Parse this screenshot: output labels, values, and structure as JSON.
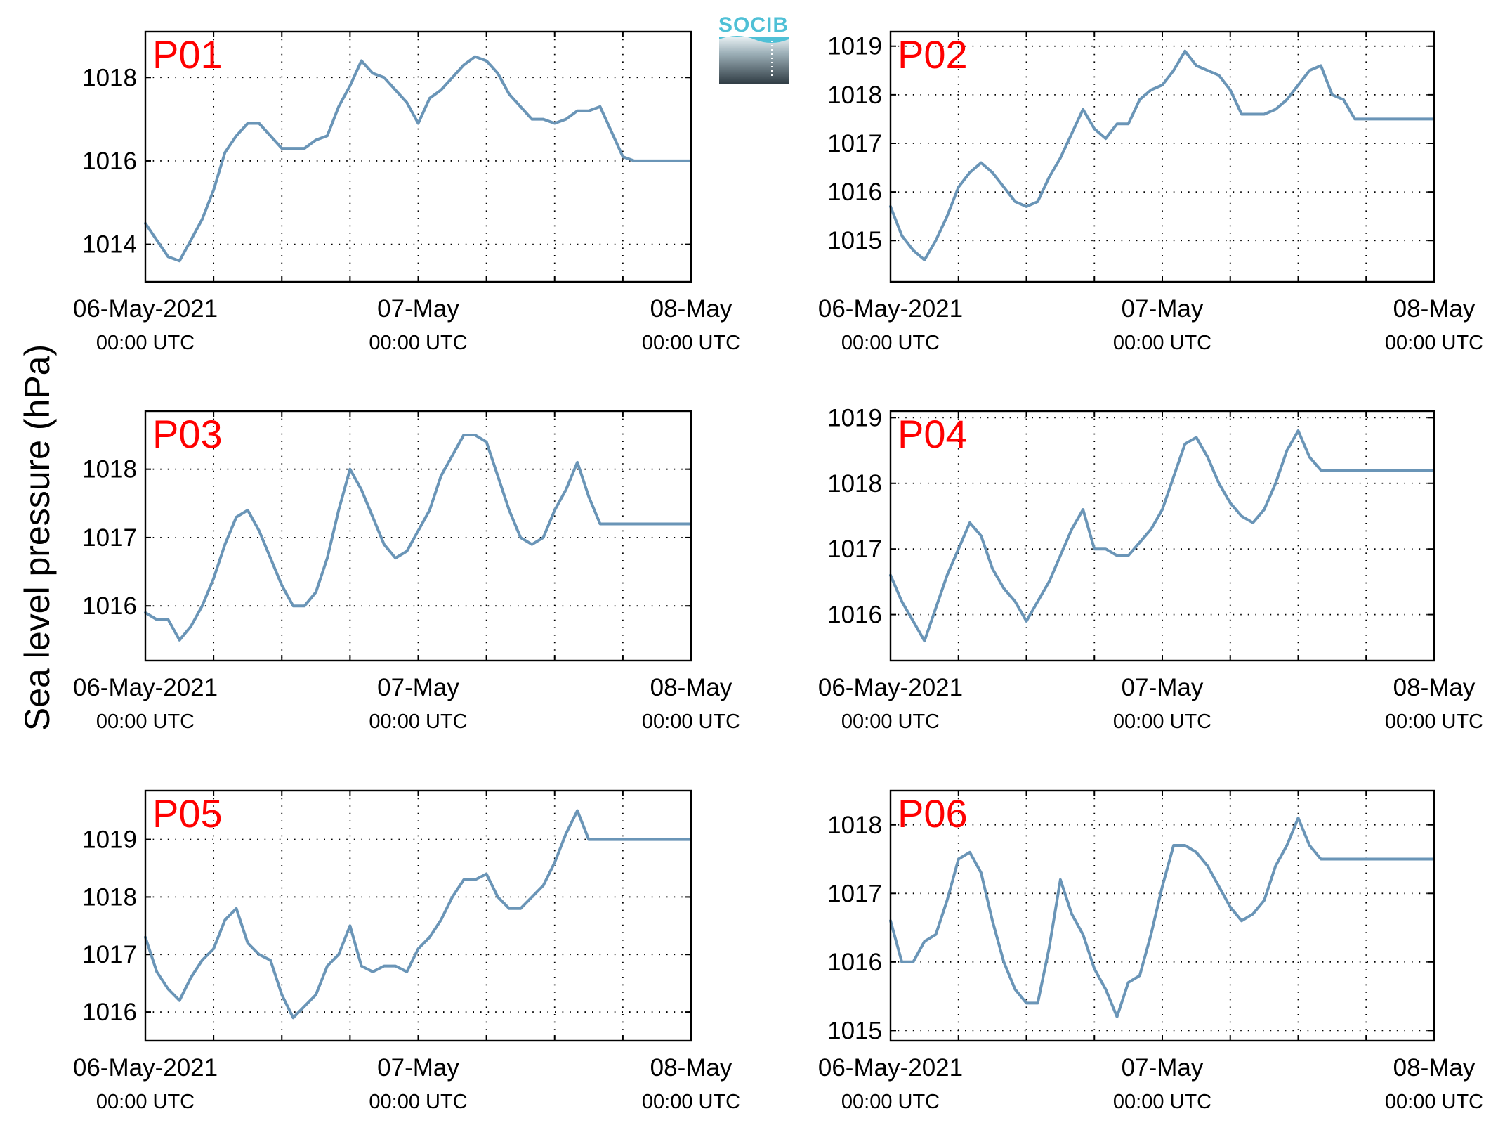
{
  "figure": {
    "ylabel": "Sea level pressure (hPa)",
    "logo_text": "SOCIB",
    "colors": {
      "series": "#6a95b7",
      "panel_label": "#ff0000"
    }
  },
  "chart_data": [
    {
      "type": "line",
      "panel_label": "P01",
      "xlim": [
        "06-May-2021 00:00 UTC",
        "08-May-2021 00:00 UTC"
      ],
      "ylim": [
        1013.1,
        1019.1
      ],
      "yticks": [
        1014,
        1016,
        1018
      ],
      "xtick_labels": [
        [
          "06-May-2021",
          "00:00 UTC"
        ],
        [
          "07-May",
          "00:00 UTC"
        ],
        [
          "08-May",
          "00:00 UTC"
        ]
      ],
      "grid": true,
      "x_hours": [
        0,
        1,
        2,
        3,
        4,
        5,
        6,
        7,
        8,
        9,
        10,
        11,
        12,
        13,
        14,
        15,
        16,
        17,
        18,
        19,
        20,
        21,
        22,
        23,
        24,
        25,
        26,
        27,
        28,
        29,
        30,
        31,
        32,
        33,
        34,
        35,
        36,
        37,
        38,
        39,
        40,
        41,
        42,
        43,
        44,
        45,
        46,
        47,
        48
      ],
      "y": [
        1014.5,
        1014.1,
        1013.7,
        1013.6,
        1014.1,
        1014.6,
        1015.3,
        1016.2,
        1016.6,
        1016.9,
        1016.9,
        1016.6,
        1016.3,
        1016.3,
        1016.3,
        1016.5,
        1016.6,
        1017.3,
        1017.8,
        1018.4,
        1018.1,
        1018.0,
        1017.7,
        1017.4,
        1016.9,
        1017.5,
        1017.7,
        1018.0,
        1018.3,
        1018.5,
        1018.4,
        1018.1,
        1017.6,
        1017.3,
        1017.0,
        1017.0,
        1016.9,
        1017.0,
        1017.2,
        1017.2,
        1017.3,
        1016.7,
        1016.1,
        1016.0,
        1016.0,
        1016.0,
        1016.0,
        1016.0,
        1016.0
      ]
    },
    {
      "type": "line",
      "panel_label": "P02",
      "xlim": [
        "06-May-2021 00:00 UTC",
        "08-May-2021 00:00 UTC"
      ],
      "ylim": [
        1014.15,
        1019.3
      ],
      "yticks": [
        1015,
        1016,
        1017,
        1018,
        1019
      ],
      "xtick_labels": [
        [
          "06-May-2021",
          "00:00 UTC"
        ],
        [
          "07-May",
          "00:00 UTC"
        ],
        [
          "08-May",
          "00:00 UTC"
        ]
      ],
      "grid": true,
      "x_hours": [
        0,
        1,
        2,
        3,
        4,
        5,
        6,
        7,
        8,
        9,
        10,
        11,
        12,
        13,
        14,
        15,
        16,
        17,
        18,
        19,
        20,
        21,
        22,
        23,
        24,
        25,
        26,
        27,
        28,
        29,
        30,
        31,
        32,
        33,
        34,
        35,
        36,
        37,
        38,
        39,
        40,
        41,
        42,
        43,
        44,
        45,
        46,
        47,
        48
      ],
      "y": [
        1015.7,
        1015.1,
        1014.8,
        1014.6,
        1015.0,
        1015.5,
        1016.1,
        1016.4,
        1016.6,
        1016.4,
        1016.1,
        1015.8,
        1015.7,
        1015.8,
        1016.3,
        1016.7,
        1017.2,
        1017.7,
        1017.3,
        1017.1,
        1017.4,
        1017.4,
        1017.9,
        1018.1,
        1018.2,
        1018.5,
        1018.9,
        1018.6,
        1018.5,
        1018.4,
        1018.1,
        1017.6,
        1017.6,
        1017.6,
        1017.7,
        1017.9,
        1018.2,
        1018.5,
        1018.6,
        1018.0,
        1017.9,
        1017.5,
        1017.5,
        1017.5,
        1017.5,
        1017.5,
        1017.5,
        1017.5,
        1017.5
      ]
    },
    {
      "type": "line",
      "panel_label": "P03",
      "xlim": [
        "06-May-2021 00:00 UTC",
        "08-May-2021 00:00 UTC"
      ],
      "ylim": [
        1015.2,
        1018.85
      ],
      "yticks": [
        1016,
        1017,
        1018
      ],
      "xtick_labels": [
        [
          "06-May-2021",
          "00:00 UTC"
        ],
        [
          "07-May",
          "00:00 UTC"
        ],
        [
          "08-May",
          "00:00 UTC"
        ]
      ],
      "grid": true,
      "x_hours": [
        0,
        1,
        2,
        3,
        4,
        5,
        6,
        7,
        8,
        9,
        10,
        11,
        12,
        13,
        14,
        15,
        16,
        17,
        18,
        19,
        20,
        21,
        22,
        23,
        24,
        25,
        26,
        27,
        28,
        29,
        30,
        31,
        32,
        33,
        34,
        35,
        36,
        37,
        38,
        39,
        40,
        41,
        42,
        43,
        44,
        45,
        46,
        47,
        48
      ],
      "y": [
        1015.9,
        1015.8,
        1015.8,
        1015.5,
        1015.7,
        1016.0,
        1016.4,
        1016.9,
        1017.3,
        1017.4,
        1017.1,
        1016.7,
        1016.3,
        1016.0,
        1016.0,
        1016.2,
        1016.7,
        1017.4,
        1018.0,
        1017.7,
        1017.3,
        1016.9,
        1016.7,
        1016.8,
        1017.1,
        1017.4,
        1017.9,
        1018.2,
        1018.5,
        1018.5,
        1018.4,
        1017.9,
        1017.4,
        1017.0,
        1016.9,
        1017.0,
        1017.4,
        1017.7,
        1018.1,
        1017.6,
        1017.2,
        1017.2,
        1017.2,
        1017.2,
        1017.2,
        1017.2,
        1017.2,
        1017.2,
        1017.2
      ]
    },
    {
      "type": "line",
      "panel_label": "P04",
      "xlim": [
        "06-May-2021 00:00 UTC",
        "08-May-2021 00:00 UTC"
      ],
      "ylim": [
        1015.3,
        1019.1
      ],
      "yticks": [
        1016,
        1017,
        1018,
        1019
      ],
      "xtick_labels": [
        [
          "06-May-2021",
          "00:00 UTC"
        ],
        [
          "07-May",
          "00:00 UTC"
        ],
        [
          "08-May",
          "00:00 UTC"
        ]
      ],
      "grid": true,
      "x_hours": [
        0,
        1,
        2,
        3,
        4,
        5,
        6,
        7,
        8,
        9,
        10,
        11,
        12,
        13,
        14,
        15,
        16,
        17,
        18,
        19,
        20,
        21,
        22,
        23,
        24,
        25,
        26,
        27,
        28,
        29,
        30,
        31,
        32,
        33,
        34,
        35,
        36,
        37,
        38,
        39,
        40,
        41,
        42,
        43,
        44,
        45,
        46,
        47,
        48
      ],
      "y": [
        1016.6,
        1016.2,
        1015.9,
        1015.6,
        1016.1,
        1016.6,
        1017.0,
        1017.4,
        1017.2,
        1016.7,
        1016.4,
        1016.2,
        1015.9,
        1016.2,
        1016.5,
        1016.9,
        1017.3,
        1017.6,
        1017.0,
        1017.0,
        1016.9,
        1016.9,
        1017.1,
        1017.3,
        1017.6,
        1018.1,
        1018.6,
        1018.7,
        1018.4,
        1018.0,
        1017.7,
        1017.5,
        1017.4,
        1017.6,
        1018.0,
        1018.5,
        1018.8,
        1018.4,
        1018.2,
        1018.2,
        1018.2,
        1018.2,
        1018.2,
        1018.2,
        1018.2,
        1018.2,
        1018.2,
        1018.2,
        1018.2
      ]
    },
    {
      "type": "line",
      "panel_label": "P05",
      "xlim": [
        "06-May-2021 00:00 UTC",
        "08-May-2021 00:00 UTC"
      ],
      "ylim": [
        1015.5,
        1019.85
      ],
      "yticks": [
        1016,
        1017,
        1018,
        1019
      ],
      "xtick_labels": [
        [
          "06-May-2021",
          "00:00 UTC"
        ],
        [
          "07-May",
          "00:00 UTC"
        ],
        [
          "08-May",
          "00:00 UTC"
        ]
      ],
      "grid": true,
      "x_hours": [
        0,
        1,
        2,
        3,
        4,
        5,
        6,
        7,
        8,
        9,
        10,
        11,
        12,
        13,
        14,
        15,
        16,
        17,
        18,
        19,
        20,
        21,
        22,
        23,
        24,
        25,
        26,
        27,
        28,
        29,
        30,
        31,
        32,
        33,
        34,
        35,
        36,
        37,
        38,
        39,
        40,
        41,
        42,
        43,
        44,
        45,
        46,
        47,
        48
      ],
      "y": [
        1017.3,
        1016.7,
        1016.4,
        1016.2,
        1016.6,
        1016.9,
        1017.1,
        1017.6,
        1017.8,
        1017.2,
        1017.0,
        1016.9,
        1016.3,
        1015.9,
        1016.1,
        1016.3,
        1016.8,
        1017.0,
        1017.5,
        1016.8,
        1016.7,
        1016.8,
        1016.8,
        1016.7,
        1017.1,
        1017.3,
        1017.6,
        1018.0,
        1018.3,
        1018.3,
        1018.4,
        1018.0,
        1017.8,
        1017.8,
        1018.0,
        1018.2,
        1018.6,
        1019.1,
        1019.5,
        1019.0,
        1019.0,
        1019.0,
        1019.0,
        1019.0,
        1019.0,
        1019.0,
        1019.0,
        1019.0,
        1019.0
      ]
    },
    {
      "type": "line",
      "panel_label": "P06",
      "xlim": [
        "06-May-2021 00:00 UTC",
        "08-May-2021 00:00 UTC"
      ],
      "ylim": [
        1014.85,
        1018.5
      ],
      "yticks": [
        1015,
        1016,
        1017,
        1018
      ],
      "xtick_labels": [
        [
          "06-May-2021",
          "00:00 UTC"
        ],
        [
          "07-May",
          "00:00 UTC"
        ],
        [
          "08-May",
          "00:00 UTC"
        ]
      ],
      "grid": true,
      "x_hours": [
        0,
        1,
        2,
        3,
        4,
        5,
        6,
        7,
        8,
        9,
        10,
        11,
        12,
        13,
        14,
        15,
        16,
        17,
        18,
        19,
        20,
        21,
        22,
        23,
        24,
        25,
        26,
        27,
        28,
        29,
        30,
        31,
        32,
        33,
        34,
        35,
        36,
        37,
        38,
        39,
        40,
        41,
        42,
        43,
        44,
        45,
        46,
        47,
        48
      ],
      "y": [
        1016.6,
        1016.0,
        1016.0,
        1016.3,
        1016.4,
        1016.9,
        1017.5,
        1017.6,
        1017.3,
        1016.6,
        1016.0,
        1015.6,
        1015.4,
        1015.4,
        1016.2,
        1017.2,
        1016.7,
        1016.4,
        1015.9,
        1015.6,
        1015.2,
        1015.7,
        1015.8,
        1016.4,
        1017.1,
        1017.7,
        1017.7,
        1017.6,
        1017.4,
        1017.1,
        1016.8,
        1016.6,
        1016.7,
        1016.9,
        1017.4,
        1017.7,
        1018.1,
        1017.7,
        1017.5,
        1017.5,
        1017.5,
        1017.5,
        1017.5,
        1017.5,
        1017.5,
        1017.5,
        1017.5,
        1017.5,
        1017.5
      ]
    }
  ]
}
